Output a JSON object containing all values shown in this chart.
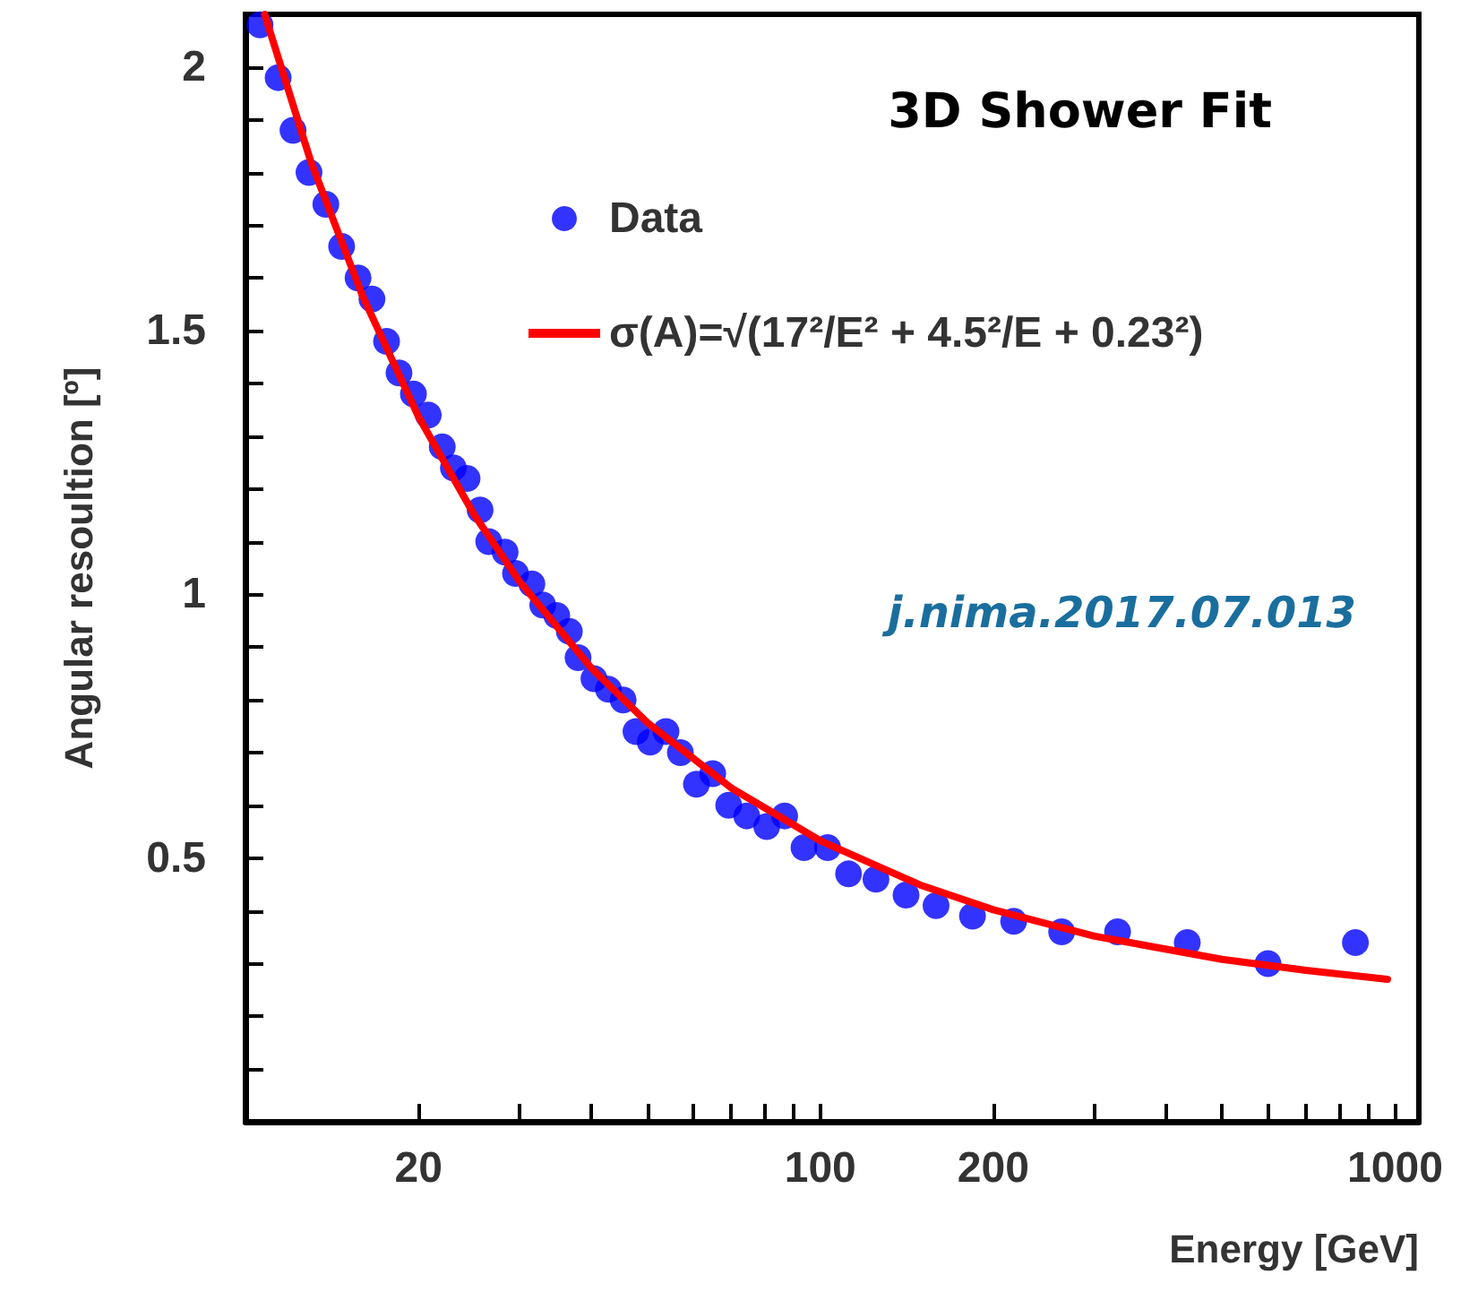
{
  "chart_data": {
    "type": "scatter",
    "title": "3D Shower Fit",
    "xlabel": "Energy [GeV]",
    "ylabel": "Angular resoultion [º]",
    "log": "x",
    "xlim": [
      10,
      1100
    ],
    "ylim": [
      0,
      2.1
    ],
    "xticks": [
      {
        "value": 20,
        "label": "20"
      },
      {
        "value": 30,
        "label": null
      },
      {
        "value": 40,
        "label": null
      },
      {
        "value": 50,
        "label": null
      },
      {
        "value": 60,
        "label": null
      },
      {
        "value": 70,
        "label": null
      },
      {
        "value": 80,
        "label": null
      },
      {
        "value": 90,
        "label": null
      },
      {
        "value": 100,
        "label": "100"
      },
      {
        "value": 200,
        "label": "200"
      },
      {
        "value": 300,
        "label": null
      },
      {
        "value": 400,
        "label": null
      },
      {
        "value": 500,
        "label": null
      },
      {
        "value": 600,
        "label": null
      },
      {
        "value": 700,
        "label": null
      },
      {
        "value": 800,
        "label": null
      },
      {
        "value": 900,
        "label": null
      },
      {
        "value": 1000,
        "label": "1000"
      }
    ],
    "yticks": [
      {
        "value": 0.1,
        "label": null
      },
      {
        "value": 0.2,
        "label": null
      },
      {
        "value": 0.3,
        "label": null
      },
      {
        "value": 0.4,
        "label": null
      },
      {
        "value": 0.5,
        "label": "0.5"
      },
      {
        "value": 0.6,
        "label": null
      },
      {
        "value": 0.7,
        "label": null
      },
      {
        "value": 0.8,
        "label": null
      },
      {
        "value": 0.9,
        "label": null
      },
      {
        "value": 1,
        "label": "1"
      },
      {
        "value": 1.1,
        "label": null
      },
      {
        "value": 1.2,
        "label": null
      },
      {
        "value": 1.3,
        "label": null
      },
      {
        "value": 1.4,
        "label": null
      },
      {
        "value": 1.5,
        "label": "1.5"
      },
      {
        "value": 1.6,
        "label": null
      },
      {
        "value": 1.7,
        "label": null
      },
      {
        "value": 1.8,
        "label": null
      },
      {
        "value": 1.9,
        "label": null
      },
      {
        "value": 2,
        "label": "2"
      }
    ],
    "grid": false,
    "legend": "top right",
    "annotations": [
      {
        "text": "j.nima.2017.07.013"
      }
    ],
    "series": [
      {
        "name": "Data",
        "marker": "circle",
        "color": "#0000ff",
        "x": [
          10.6,
          11.4,
          12.1,
          12.9,
          13.8,
          14.7,
          15.7,
          16.6,
          17.6,
          18.5,
          19.6,
          20.8,
          22.0,
          23.0,
          24.3,
          25.6,
          26.5,
          28.3,
          29.5,
          31.5,
          32.9,
          34.8,
          36.6,
          37.9,
          40.4,
          42.8,
          45.4,
          47.8,
          50.6,
          53.9,
          57.1,
          60.9,
          65.0,
          69.3,
          74.5,
          80.7,
          86.7,
          93.7,
          103,
          112,
          125,
          141,
          159,
          184,
          217,
          263,
          329,
          435,
          601,
          853
        ],
        "values": [
          2.08,
          1.98,
          1.88,
          1.8,
          1.74,
          1.66,
          1.6,
          1.56,
          1.48,
          1.42,
          1.38,
          1.34,
          1.28,
          1.24,
          1.22,
          1.16,
          1.1,
          1.08,
          1.04,
          1.02,
          0.98,
          0.96,
          0.93,
          0.88,
          0.84,
          0.82,
          0.8,
          0.74,
          0.72,
          0.74,
          0.7,
          0.64,
          0.66,
          0.6,
          0.58,
          0.56,
          0.58,
          0.52,
          0.52,
          0.47,
          0.46,
          0.43,
          0.41,
          0.39,
          0.38,
          0.36,
          0.36,
          0.34,
          0.3,
          0.34
        ]
      },
      {
        "name": "σ(A)=√(17²/E² + 4.5²/E + 0.23²)",
        "type": "line",
        "marker": "none",
        "line_style": "solid",
        "color": "#ff0000",
        "x": [
          10.8,
          13,
          16,
          20,
          25,
          30,
          40,
          50,
          70,
          100,
          150,
          200,
          300,
          500,
          700,
          970
        ],
        "values": [
          2.1,
          1.82,
          1.565,
          1.337,
          1.151,
          1.024,
          0.86,
          0.757,
          0.633,
          0.533,
          0.448,
          0.402,
          0.352,
          0.308,
          0.287,
          0.27
        ]
      }
    ]
  }
}
